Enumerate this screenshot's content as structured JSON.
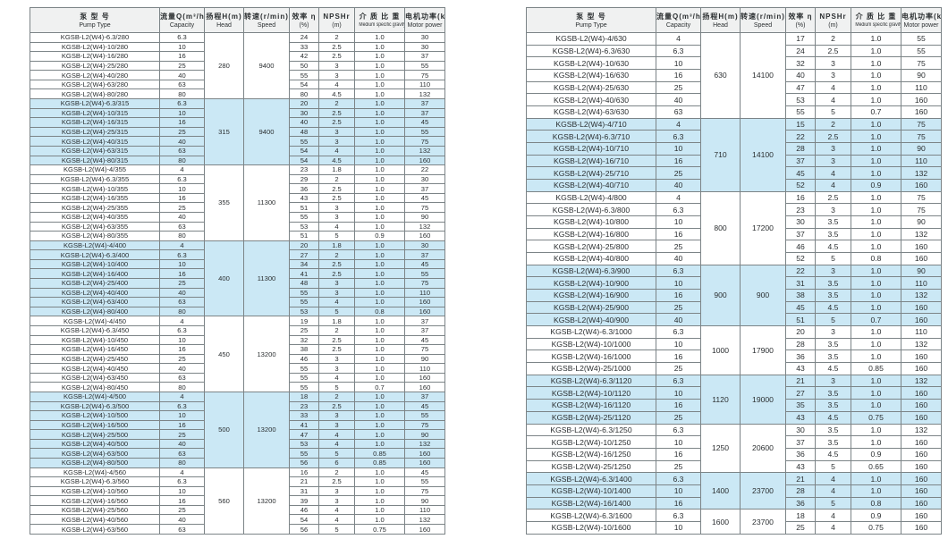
{
  "colors": {
    "highlight_row": "#cbe8f5",
    "header_bg": "#f0f1f1",
    "border": "#7c8487",
    "text": "#2b2f31"
  },
  "columns": {
    "pump_type_zh": "泵 型 号",
    "pump_type_en": "Pump Type",
    "capacity_zh": "流量Q(m³/h)",
    "capacity_en": "Capacity",
    "head_zh": "扬程H(m)",
    "head_en": "Head",
    "speed_zh": "转速(r/min)",
    "speed_en": "Speed",
    "efficiency_zh": "效率 η",
    "efficiency_en": "(%)",
    "npshr_zh": "NPSHr",
    "npshr_en": "(m)",
    "gravity_zh": "介 质 比 重",
    "gravity_en": "Medium specific gravity",
    "power_zh": "电机功率(kW)",
    "power_en": "Motor power"
  },
  "tables": [
    {
      "id": "left",
      "sections": [
        {
          "head": "280",
          "speed": "9400",
          "highlight": false,
          "rows": [
            [
              "KGSB-L2(W4)-6.3/280",
              "6.3",
              "24",
              "2",
              "1.0",
              "30"
            ],
            [
              "KGSB-L2(W4)-10/280",
              "10",
              "33",
              "2.5",
              "1.0",
              "30"
            ],
            [
              "KGSB-L2(W4)-16/280",
              "16",
              "42",
              "2.5",
              "1.0",
              "37"
            ],
            [
              "KGSB-L2(W4)-25/280",
              "25",
              "50",
              "3",
              "1.0",
              "55"
            ],
            [
              "KGSB-L2(W4)-40/280",
              "40",
              "55",
              "3",
              "1.0",
              "75"
            ],
            [
              "KGSB-L2(W4)-63/280",
              "63",
              "54",
              "4",
              "1.0",
              "110"
            ],
            [
              "KGSB-L2(W4)-80/280",
              "80",
              "80",
              "4.5",
              "1.0",
              "132"
            ]
          ]
        },
        {
          "head": "315",
          "speed": "9400",
          "highlight": true,
          "rows": [
            [
              "KGSB-L2(W4)-6.3/315",
              "6.3",
              "20",
              "2",
              "1.0",
              "37"
            ],
            [
              "KGSB-L2(W4)-10/315",
              "10",
              "30",
              "2.5",
              "1.0",
              "37"
            ],
            [
              "KGSB-L2(W4)-16/315",
              "16",
              "40",
              "2.5",
              "1.0",
              "45"
            ],
            [
              "KGSB-L2(W4)-25/315",
              "25",
              "48",
              "3",
              "1.0",
              "55"
            ],
            [
              "KGSB-L2(W4)-40/315",
              "40",
              "55",
              "3",
              "1.0",
              "75"
            ],
            [
              "KGSB-L2(W4)-63/315",
              "63",
              "54",
              "4",
              "1.0",
              "132"
            ],
            [
              "KGSB-L2(W4)-80/315",
              "80",
              "54",
              "4.5",
              "1.0",
              "160"
            ]
          ]
        },
        {
          "head": "355",
          "speed": "11300",
          "highlight": false,
          "rows": [
            [
              "KGSB-L2(W4)-4/355",
              "4",
              "23",
              "1.8",
              "1.0",
              "22"
            ],
            [
              "KGSB-L2(W4)-6.3/355",
              "6.3",
              "29",
              "2",
              "1.0",
              "30"
            ],
            [
              "KGSB-L2(W4)-10/355",
              "10",
              "36",
              "2.5",
              "1.0",
              "37"
            ],
            [
              "KGSB-L2(W4)-16/355",
              "16",
              "43",
              "2.5",
              "1.0",
              "45"
            ],
            [
              "KGSB-L2(W4)-25/355",
              "25",
              "51",
              "3",
              "1.0",
              "75"
            ],
            [
              "KGSB-L2(W4)-40/355",
              "40",
              "55",
              "3",
              "1.0",
              "90"
            ],
            [
              "KGSB-L2(W4)-63/355",
              "63",
              "53",
              "4",
              "1.0",
              "132"
            ],
            [
              "KGSB-L2(W4)-80/355",
              "80",
              "51",
              "5",
              "0.9",
              "160"
            ]
          ]
        },
        {
          "head": "400",
          "speed": "11300",
          "highlight": true,
          "rows": [
            [
              "KGSB-L2(W4)-4/400",
              "4",
              "20",
              "1.8",
              "1.0",
              "30"
            ],
            [
              "KGSB-L2(W4)-6.3/400",
              "6.3",
              "27",
              "2",
              "1.0",
              "37"
            ],
            [
              "KGSB-L2(W4)-10/400",
              "10",
              "34",
              "2.5",
              "1.0",
              "45"
            ],
            [
              "KGSB-L2(W4)-16/400",
              "16",
              "41",
              "2.5",
              "1.0",
              "55"
            ],
            [
              "KGSB-L2(W4)-25/400",
              "25",
              "48",
              "3",
              "1.0",
              "75"
            ],
            [
              "KGSB-L2(W4)-40/400",
              "40",
              "55",
              "3",
              "1.0",
              "110"
            ],
            [
              "KGSB-L2(W4)-63/400",
              "63",
              "55",
              "4",
              "1.0",
              "160"
            ],
            [
              "KGSB-L2(W4)-80/400",
              "80",
              "53",
              "5",
              "0.8",
              "160"
            ]
          ]
        },
        {
          "head": "450",
          "speed": "13200",
          "highlight": false,
          "rows": [
            [
              "KGSB-L2(W4)-4/450",
              "4",
              "19",
              "1.8",
              "1.0",
              "37"
            ],
            [
              "KGSB-L2(W4)-6.3/450",
              "6.3",
              "25",
              "2",
              "1.0",
              "37"
            ],
            [
              "KGSB-L2(W4)-10/450",
              "10",
              "32",
              "2.5",
              "1.0",
              "45"
            ],
            [
              "KGSB-L2(W4)-16/450",
              "16",
              "38",
              "2.5",
              "1.0",
              "75"
            ],
            [
              "KGSB-L2(W4)-25/450",
              "25",
              "46",
              "3",
              "1.0",
              "90"
            ],
            [
              "KGSB-L2(W4)-40/450",
              "40",
              "55",
              "3",
              "1.0",
              "110"
            ],
            [
              "KGSB-L2(W4)-63/450",
              "63",
              "55",
              "4",
              "1.0",
              "160"
            ],
            [
              "KGSB-L2(W4)-80/450",
              "80",
              "55",
              "5",
              "0.7",
              "160"
            ]
          ]
        },
        {
          "head": "500",
          "speed": "13200",
          "highlight": true,
          "rows": [
            [
              "KGSB-L2(W4)-4/500",
              "4",
              "18",
              "2",
              "1.0",
              "37"
            ],
            [
              "KGSB-L2(W4)-6.3/500",
              "6.3",
              "23",
              "2.5",
              "1.0",
              "45"
            ],
            [
              "KGSB-L2(W4)-10/500",
              "10",
              "33",
              "3",
              "1.0",
              "55"
            ],
            [
              "KGSB-L2(W4)-16/500",
              "16",
              "41",
              "3",
              "1.0",
              "75"
            ],
            [
              "KGSB-L2(W4)-25/500",
              "25",
              "47",
              "4",
              "1.0",
              "90"
            ],
            [
              "KGSB-L2(W4)-40/500",
              "40",
              "53",
              "4",
              "1.0",
              "132"
            ],
            [
              "KGSB-L2(W4)-63/500",
              "63",
              "55",
              "5",
              "0.85",
              "160"
            ],
            [
              "KGSB-L2(W4)-80/500",
              "80",
              "56",
              "6",
              "0.85",
              "160"
            ]
          ]
        },
        {
          "head": "560",
          "speed": "13200",
          "highlight": false,
          "rows": [
            [
              "KGSB-L2(W4)-4/560",
              "4",
              "16",
              "2",
              "1.0",
              "45"
            ],
            [
              "KGSB-L2(W4)-6.3/560",
              "6.3",
              "21",
              "2.5",
              "1.0",
              "55"
            ],
            [
              "KGSB-L2(W4)-10/560",
              "10",
              "31",
              "3",
              "1.0",
              "75"
            ],
            [
              "KGSB-L2(W4)-16/560",
              "16",
              "39",
              "3",
              "1.0",
              "90"
            ],
            [
              "KGSB-L2(W4)-25/560",
              "25",
              "46",
              "4",
              "1.0",
              "110"
            ],
            [
              "KGSB-L2(W4)-40/560",
              "40",
              "54",
              "4",
              "1.0",
              "132"
            ],
            [
              "KGSB-L2(W4)-63/560",
              "63",
              "56",
              "5",
              "0.75",
              "160"
            ]
          ]
        }
      ]
    },
    {
      "id": "right",
      "sections": [
        {
          "head": "630",
          "speed": "14100",
          "highlight": false,
          "rows": [
            [
              "KGSB-L2(W4)-4/630",
              "4",
              "17",
              "2",
              "1.0",
              "55"
            ],
            [
              "KGSB-L2(W4)-6.3/630",
              "6.3",
              "24",
              "2.5",
              "1.0",
              "55"
            ],
            [
              "KGSB-L2(W4)-10/630",
              "10",
              "32",
              "3",
              "1.0",
              "75"
            ],
            [
              "KGSB-L2(W4)-16/630",
              "16",
              "40",
              "3",
              "1.0",
              "90"
            ],
            [
              "KGSB-L2(W4)-25/630",
              "25",
              "47",
              "4",
              "1.0",
              "110"
            ],
            [
              "KGSB-L2(W4)-40/630",
              "40",
              "53",
              "4",
              "1.0",
              "160"
            ],
            [
              "KGSB-L2(W4)-63/630",
              "63",
              "55",
              "5",
              "0.7",
              "160"
            ]
          ]
        },
        {
          "head": "710",
          "speed": "14100",
          "highlight": true,
          "rows": [
            [
              "KGSB-L2(W4)-4/710",
              "4",
              "15",
              "2",
              "1.0",
              "75"
            ],
            [
              "KGSB-L2(W4)-6.3/710",
              "6.3",
              "22",
              "2.5",
              "1.0",
              "75"
            ],
            [
              "KGSB-L2(W4)-10/710",
              "10",
              "28",
              "3",
              "1.0",
              "90"
            ],
            [
              "KGSB-L2(W4)-16/710",
              "16",
              "37",
              "3",
              "1.0",
              "110"
            ],
            [
              "KGSB-L2(W4)-25/710",
              "25",
              "45",
              "4",
              "1.0",
              "132"
            ],
            [
              "KGSB-L2(W4)-40/710",
              "40",
              "52",
              "4",
              "0.9",
              "160"
            ]
          ]
        },
        {
          "head": "800",
          "speed": "17200",
          "highlight": false,
          "rows": [
            [
              "KGSB-L2(W4)-4/800",
              "4",
              "16",
              "2.5",
              "1.0",
              "75"
            ],
            [
              "KGSB-L2(W4)-6.3/800",
              "6.3",
              "23",
              "3",
              "1.0",
              "75"
            ],
            [
              "KGSB-L2(W4)-10/800",
              "10",
              "30",
              "3.5",
              "1.0",
              "90"
            ],
            [
              "KGSB-L2(W4)-16/800",
              "16",
              "37",
              "3.5",
              "1.0",
              "132"
            ],
            [
              "KGSB-L2(W4)-25/800",
              "25",
              "46",
              "4.5",
              "1.0",
              "160"
            ],
            [
              "KGSB-L2(W4)-40/800",
              "40",
              "52",
              "5",
              "0.8",
              "160"
            ]
          ]
        },
        {
          "head": "900",
          "speed": "900",
          "highlight": true,
          "rows": [
            [
              "KGSB-L2(W4)-6.3/900",
              "6.3",
              "22",
              "3",
              "1.0",
              "90"
            ],
            [
              "KGSB-L2(W4)-10/900",
              "10",
              "31",
              "3.5",
              "1.0",
              "110"
            ],
            [
              "KGSB-L2(W4)-16/900",
              "16",
              "38",
              "3.5",
              "1.0",
              "132"
            ],
            [
              "KGSB-L2(W4)-25/900",
              "25",
              "45",
              "4.5",
              "1.0",
              "160"
            ],
            [
              "KGSB-L2(W4)-40/900",
              "40",
              "51",
              "5",
              "0.7",
              "160"
            ]
          ]
        },
        {
          "head": "1000",
          "speed": "17900",
          "highlight": false,
          "rows": [
            [
              "KGSB-L2(W4)-6.3/1000",
              "6.3",
              "20",
              "3",
              "1.0",
              "110"
            ],
            [
              "KGSB-L2(W4)-10/1000",
              "10",
              "28",
              "3.5",
              "1.0",
              "132"
            ],
            [
              "KGSB-L2(W4)-16/1000",
              "16",
              "36",
              "3.5",
              "1.0",
              "160"
            ],
            [
              "KGSB-L2(W4)-25/1000",
              "25",
              "43",
              "4.5",
              "0.85",
              "160"
            ]
          ]
        },
        {
          "head": "1120",
          "speed": "19000",
          "highlight": true,
          "rows": [
            [
              "KGSB-L2(W4)-6.3/1120",
              "6.3",
              "21",
              "3",
              "1.0",
              "132"
            ],
            [
              "KGSB-L2(W4)-10/1120",
              "10",
              "27",
              "3.5",
              "1.0",
              "160"
            ],
            [
              "KGSB-L2(W4)-16/1120",
              "16",
              "35",
              "3.5",
              "1.0",
              "160"
            ],
            [
              "KGSB-L2(W4)-25/1120",
              "25",
              "43",
              "4.5",
              "0.75",
              "160"
            ]
          ]
        },
        {
          "head": "1250",
          "speed": "20600",
          "highlight": false,
          "rows": [
            [
              "KGSB-L2(W4)-6.3/1250",
              "6.3",
              "30",
              "3.5",
              "1.0",
              "132"
            ],
            [
              "KGSB-L2(W4)-10/1250",
              "10",
              "37",
              "3.5",
              "1.0",
              "160"
            ],
            [
              "KGSB-L2(W4)-16/1250",
              "16",
              "36",
              "4.5",
              "0.9",
              "160"
            ],
            [
              "KGSB-L2(W4)-25/1250",
              "25",
              "43",
              "5",
              "0.65",
              "160"
            ]
          ]
        },
        {
          "head": "1400",
          "speed": "23700",
          "highlight": true,
          "rows": [
            [
              "KGSB-L2(W4)-6.3/1400",
              "6.3",
              "21",
              "4",
              "1.0",
              "160"
            ],
            [
              "KGSB-L2(W4)-10/1400",
              "10",
              "28",
              "4",
              "1.0",
              "160"
            ],
            [
              "KGSB-L2(W4)-16/1400",
              "16",
              "36",
              "5",
              "0.8",
              "160"
            ]
          ]
        },
        {
          "head": "1600",
          "speed": "23700",
          "highlight": false,
          "rows": [
            [
              "KGSB-L2(W4)-6.3/1600",
              "6.3",
              "18",
              "4",
              "0.9",
              "160"
            ],
            [
              "KGSB-L2(W4)-10/1600",
              "10",
              "25",
              "4",
              "0.75",
              "160"
            ]
          ]
        }
      ]
    }
  ]
}
